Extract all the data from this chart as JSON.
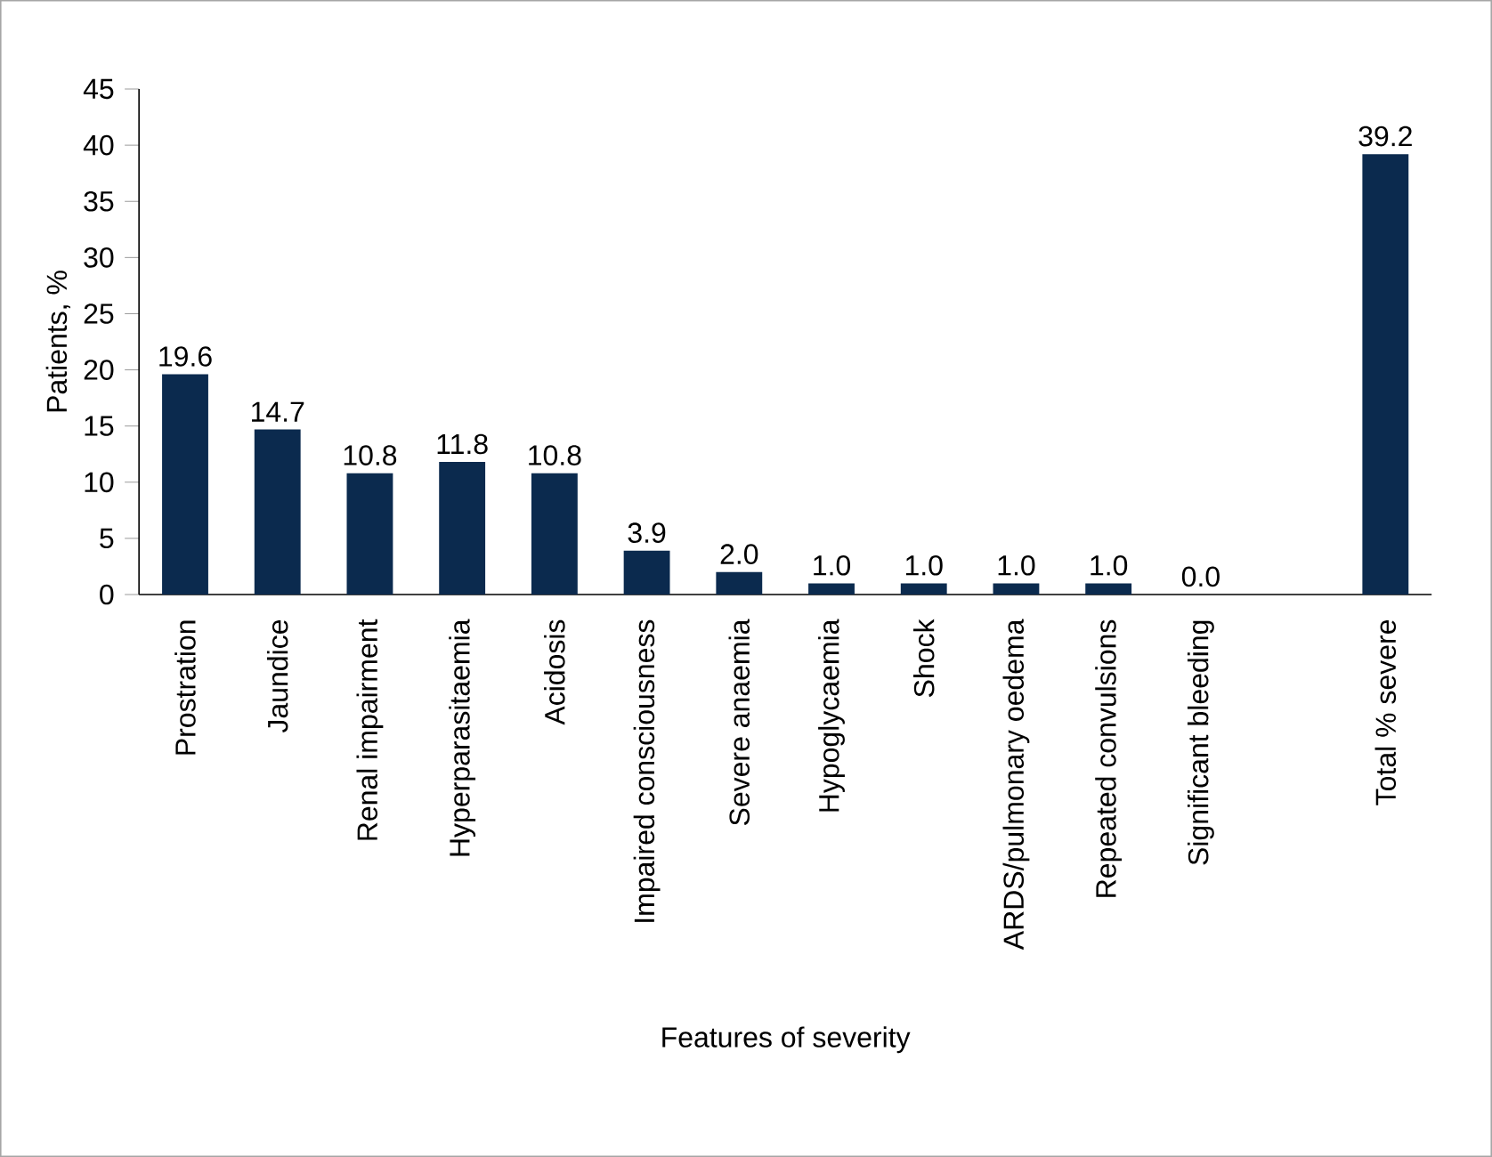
{
  "chart_data": {
    "type": "bar",
    "xlabel": "Features of severity",
    "ylabel": "Patients, %",
    "categories": [
      "Prostration",
      "Jaundice",
      "Renal impairment",
      "Hyperparasitaemia",
      "Acidosis",
      "Impaired consciousness",
      "Severe anaemia",
      "Hypoglycaemia",
      "Shock",
      "ARDS/pulmonary oedema",
      "Repeated convulsions",
      "Significant bleeding",
      null,
      "Total % severe"
    ],
    "values": [
      19.6,
      14.7,
      10.8,
      11.8,
      10.8,
      3.9,
      2.0,
      1.0,
      1.0,
      1.0,
      1.0,
      0.0,
      null,
      39.2
    ],
    "value_labels": [
      "19.6",
      "14.7",
      "10.8",
      "11.8",
      "10.8",
      "3.9",
      "2.0",
      "1.0",
      "1.0",
      "1.0",
      "1.0",
      "0.0",
      null,
      "39.2"
    ],
    "color": "#0b2a4e",
    "ylim": [
      0,
      45
    ],
    "yticks": [
      0,
      5,
      10,
      15,
      20,
      25,
      30,
      35,
      40,
      45
    ],
    "grid": false
  }
}
